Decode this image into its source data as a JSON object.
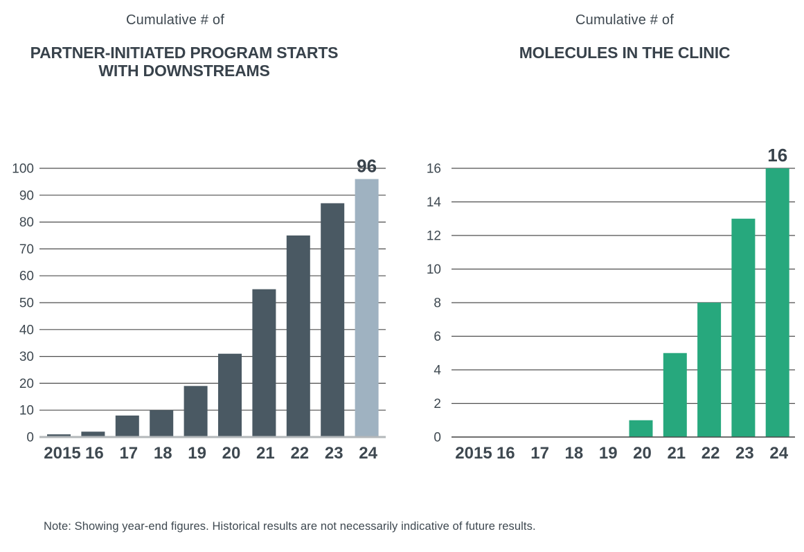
{
  "note": "Note: Showing year-end figures. Historical results are not necessarily indicative of future results.",
  "colors": {
    "ink": "#3e4850",
    "title_ink": "#38424b",
    "gridline": "#4d4d4d",
    "axis_baseline_light": "#b3b7ba",
    "left_bar": "#4a5963",
    "left_highlight_bar": "#9fb2c1",
    "right_bar": "#27a87d"
  },
  "chart_data": [
    {
      "type": "bar",
      "subtitle": "Cumulative # of",
      "title_lines": [
        "PARTNER-INITIATED PROGRAM STARTS",
        "WITH DOWNSTREAMS"
      ],
      "categories": [
        "2015",
        "16",
        "17",
        "18",
        "19",
        "20",
        "21",
        "22",
        "23",
        "24"
      ],
      "values": [
        1,
        2,
        8,
        10,
        19,
        31,
        55,
        75,
        87,
        96
      ],
      "ylim": [
        0,
        100
      ],
      "ytick_step": 10,
      "ytick_labels": [
        "0",
        "10",
        "20",
        "30",
        "40",
        "50",
        "60",
        "70",
        "80",
        "90",
        "100"
      ],
      "end_value_label": "96",
      "bar_color": "#4a5963",
      "highlight_last_bar_color": "#9fb2c1",
      "grid": true,
      "legend": false,
      "xlabel": "",
      "ylabel": ""
    },
    {
      "type": "bar",
      "subtitle": "Cumulative # of",
      "title_lines": [
        "MOLECULES IN THE CLINIC"
      ],
      "categories": [
        "2015",
        "16",
        "17",
        "18",
        "19",
        "20",
        "21",
        "22",
        "23",
        "24"
      ],
      "values": [
        0,
        0,
        0,
        0,
        0,
        1,
        5,
        8,
        13,
        16
      ],
      "ylim": [
        0,
        16
      ],
      "ytick_step": 2,
      "ytick_labels": [
        "0",
        "2",
        "4",
        "6",
        "8",
        "10",
        "12",
        "14",
        "16"
      ],
      "end_value_label": "16",
      "bar_color": "#27a87d",
      "highlight_last_bar_color": null,
      "grid": true,
      "legend": false,
      "xlabel": "",
      "ylabel": ""
    }
  ]
}
